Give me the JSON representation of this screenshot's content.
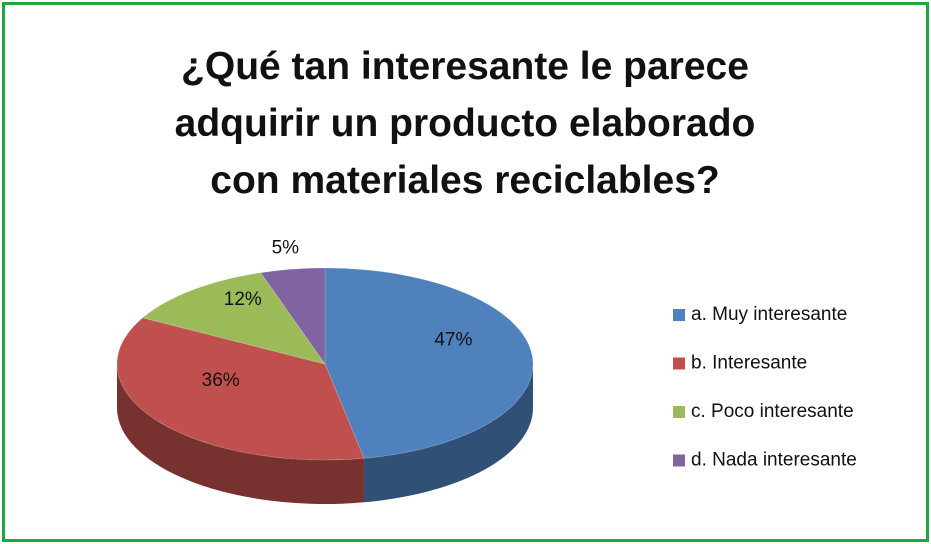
{
  "chart_data": {
    "type": "pie3d",
    "title": "¿Qué tan interesante le parece adquirir un producto elaborado con materiales reciclables?",
    "categories": [
      "a. Muy interesante",
      "b. Interesante",
      "c. Poco interesante",
      "d. Nada interesante"
    ],
    "values": [
      47,
      36,
      12,
      5
    ],
    "value_labels": [
      "47%",
      "36%",
      "12%",
      "5%"
    ],
    "colors": [
      "#4f81bd",
      "#c0504d",
      "#9bbb59",
      "#8064a2"
    ],
    "legend": "right"
  }
}
